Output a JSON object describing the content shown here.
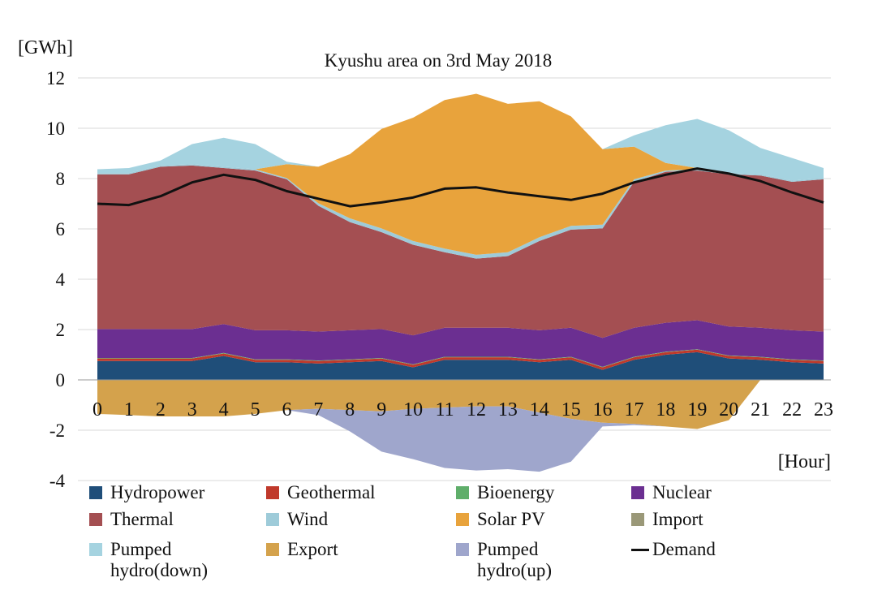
{
  "chart_data": {
    "type": "area",
    "title": "Kyushu area on 3rd May 2018",
    "ylabel": "[GWh]",
    "xlabel": "[Hour]",
    "ylim": [
      -4,
      12
    ],
    "yticks": [
      -4,
      -2,
      0,
      2,
      4,
      6,
      8,
      10,
      12
    ],
    "x": [
      0,
      1,
      2,
      3,
      4,
      5,
      6,
      7,
      8,
      9,
      10,
      11,
      12,
      13,
      14,
      15,
      16,
      17,
      18,
      19,
      20,
      21,
      22,
      23
    ],
    "grid": true,
    "legend_position": "bottom",
    "series": [
      {
        "name": "Hydropower",
        "color": "#1f4e79",
        "stack": "positive",
        "values": [
          0.75,
          0.75,
          0.75,
          0.75,
          0.95,
          0.7,
          0.7,
          0.65,
          0.7,
          0.75,
          0.5,
          0.8,
          0.8,
          0.8,
          0.7,
          0.8,
          0.4,
          0.8,
          1.0,
          1.1,
          0.85,
          0.8,
          0.7,
          0.65
        ]
      },
      {
        "name": "Geothermal",
        "color": "#c0392b",
        "stack": "positive",
        "values": [
          0.1,
          0.1,
          0.1,
          0.1,
          0.1,
          0.1,
          0.1,
          0.1,
          0.1,
          0.1,
          0.1,
          0.1,
          0.1,
          0.1,
          0.1,
          0.1,
          0.1,
          0.1,
          0.1,
          0.1,
          0.1,
          0.1,
          0.1,
          0.1
        ]
      },
      {
        "name": "Bioenergy",
        "color": "#5fae6a",
        "stack": "positive",
        "values": [
          0.02,
          0.02,
          0.02,
          0.02,
          0.02,
          0.02,
          0.02,
          0.02,
          0.02,
          0.02,
          0.02,
          0.02,
          0.02,
          0.02,
          0.02,
          0.02,
          0.02,
          0.02,
          0.02,
          0.02,
          0.02,
          0.02,
          0.02,
          0.02
        ]
      },
      {
        "name": "Nuclear",
        "color": "#6b2f91",
        "stack": "positive",
        "values": [
          1.15,
          1.15,
          1.15,
          1.15,
          1.15,
          1.15,
          1.15,
          1.15,
          1.15,
          1.15,
          1.15,
          1.15,
          1.15,
          1.15,
          1.15,
          1.15,
          1.15,
          1.15,
          1.15,
          1.15,
          1.15,
          1.15,
          1.15,
          1.15
        ]
      },
      {
        "name": "Thermal",
        "color": "#a44f52",
        "stack": "positive",
        "values": [
          6.15,
          6.15,
          6.45,
          6.5,
          6.2,
          6.35,
          6.0,
          5.0,
          4.3,
          3.85,
          3.6,
          3.0,
          2.75,
          2.85,
          3.55,
          3.9,
          4.35,
          5.8,
          6.0,
          5.95,
          6.05,
          6.05,
          5.9,
          6.05
        ]
      },
      {
        "name": "Wind",
        "color": "#9ecbd9",
        "stack": "positive",
        "values": [
          0.05,
          0.05,
          0.05,
          0.05,
          0.05,
          0.05,
          0.05,
          0.1,
          0.15,
          0.15,
          0.15,
          0.15,
          0.15,
          0.15,
          0.15,
          0.15,
          0.15,
          0.1,
          0.05,
          0.05,
          0.05,
          0.05,
          0.05,
          0.05
        ]
      },
      {
        "name": "Solar PV",
        "color": "#e8a33c",
        "stack": "positive",
        "values": [
          0.0,
          0.0,
          0.0,
          0.0,
          0.0,
          0.0,
          0.55,
          1.45,
          2.55,
          3.95,
          4.9,
          5.9,
          6.4,
          5.9,
          5.4,
          4.35,
          3.0,
          1.3,
          0.3,
          0.05,
          0.0,
          0.0,
          0.0,
          0.0
        ]
      },
      {
        "name": "Import",
        "color": "#9a9878",
        "stack": "positive",
        "values": [
          0,
          0,
          0,
          0,
          0,
          0,
          0,
          0,
          0,
          0,
          0,
          0,
          0,
          0,
          0,
          0,
          0,
          0,
          0,
          0,
          0,
          0,
          0,
          0
        ]
      },
      {
        "name": "Pumped hydro(down)",
        "color": "#a5d3e0",
        "stack": "positive",
        "values": [
          0.15,
          0.2,
          0.2,
          0.8,
          1.15,
          1.0,
          0.1,
          0.0,
          0.0,
          0.0,
          0.0,
          0.0,
          0.0,
          0.0,
          0.0,
          0.0,
          0.0,
          0.45,
          1.5,
          1.95,
          1.7,
          1.05,
          0.9,
          0.4
        ]
      },
      {
        "name": "Export",
        "color": "#d4a24c",
        "stack": "negative",
        "values": [
          1.35,
          1.4,
          1.45,
          1.45,
          1.45,
          1.35,
          1.2,
          1.15,
          1.2,
          1.25,
          1.15,
          1.1,
          1.05,
          1.05,
          1.3,
          1.55,
          1.7,
          1.75,
          1.85,
          1.95,
          1.6,
          0.0,
          0.0,
          0.0
        ]
      },
      {
        "name": "Pumped hydro(up)",
        "color": "#9fa6cc",
        "stack": "negative",
        "values": [
          0.0,
          0.0,
          0.0,
          0.0,
          0.0,
          0.0,
          0.0,
          0.25,
          0.85,
          1.6,
          2.0,
          2.4,
          2.55,
          2.5,
          2.35,
          1.7,
          0.15,
          0.05,
          0.0,
          0.0,
          0.0,
          0.0,
          0.0,
          0.0
        ]
      },
      {
        "name": "Demand",
        "color": "#111111",
        "type": "line",
        "values": [
          7.0,
          6.95,
          7.3,
          7.85,
          8.15,
          7.95,
          7.5,
          7.2,
          6.9,
          7.05,
          7.25,
          7.6,
          7.65,
          7.45,
          7.3,
          7.15,
          7.4,
          7.85,
          8.15,
          8.4,
          8.2,
          7.9,
          7.45,
          7.05
        ]
      }
    ]
  },
  "legend": [
    [
      "Hydropower",
      "Geothermal",
      "Bioenergy",
      "Nuclear"
    ],
    [
      "Thermal",
      "Wind",
      "Solar PV",
      "Import"
    ],
    [
      "Pumped\nhydro(down)",
      "Export",
      "Pumped\nhydro(up)",
      "Demand"
    ]
  ]
}
